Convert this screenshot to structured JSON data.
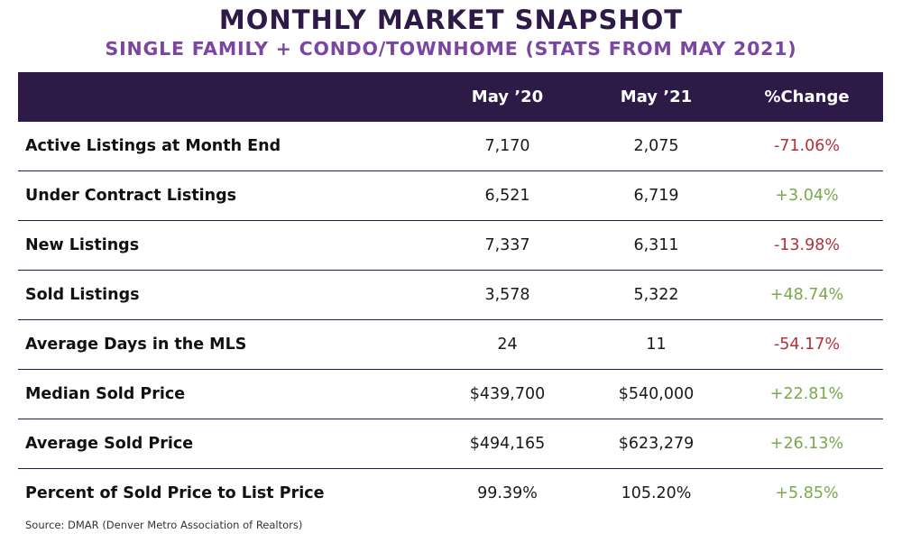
{
  "title": "MONTHLY MARKET SNAPSHOT",
  "subtitle": "SINGLE FAMILY + CONDO/TOWNHOME (STATS FROM MAY 2021)",
  "table": {
    "headers": {
      "label": "",
      "col1": "May ’20",
      "col2": "May ’21",
      "change": "%Change"
    },
    "rows": [
      {
        "label": "Active Listings at Month End",
        "col1": "7,170",
        "col2": "2,075",
        "change": "-71.06%",
        "trend": "negative"
      },
      {
        "label": "Under Contract Listings",
        "col1": "6,521",
        "col2": "6,719",
        "change": "+3.04%",
        "trend": "positive"
      },
      {
        "label": "New Listings",
        "col1": "7,337",
        "col2": "6,311",
        "change": "-13.98%",
        "trend": "negative"
      },
      {
        "label": "Sold Listings",
        "col1": "3,578",
        "col2": "5,322",
        "change": "+48.74%",
        "trend": "positive"
      },
      {
        "label": "Average Days in the MLS",
        "col1": "24",
        "col2": "11",
        "change": "-54.17%",
        "trend": "negative"
      },
      {
        "label": "Median Sold Price",
        "col1": "$439,700",
        "col2": "$540,000",
        "change": "+22.81%",
        "trend": "positive"
      },
      {
        "label": "Average Sold Price",
        "col1": "$494,165",
        "col2": "$623,279",
        "change": "+26.13%",
        "trend": "positive"
      },
      {
        "label": "Percent of Sold Price to List Price",
        "col1": "99.39%",
        "col2": "105.20%",
        "change": "+5.85%",
        "trend": "positive"
      }
    ]
  },
  "source": "Source: DMAR (Denver Metro Association of Realtors)",
  "colors": {
    "header_bg": "#2d1a47",
    "subtitle": "#7a45a3",
    "negative": "#b5303a",
    "positive": "#7aa84c"
  }
}
